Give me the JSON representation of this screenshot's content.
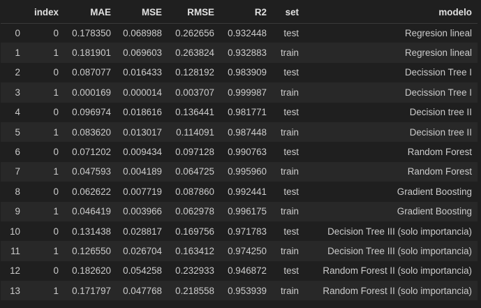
{
  "table": {
    "columns": [
      "",
      "index",
      "MAE",
      "MSE",
      "RMSE",
      "R2",
      "set",
      "modelo"
    ],
    "rows": [
      {
        "idx": "0",
        "index": "0",
        "MAE": "0.178350",
        "MSE": "0.068988",
        "RMSE": "0.262656",
        "R2": "0.932448",
        "set": "test",
        "modelo": "Regresion lineal"
      },
      {
        "idx": "1",
        "index": "1",
        "MAE": "0.181901",
        "MSE": "0.069603",
        "RMSE": "0.263824",
        "R2": "0.932883",
        "set": "train",
        "modelo": "Regresion lineal"
      },
      {
        "idx": "2",
        "index": "0",
        "MAE": "0.087077",
        "MSE": "0.016433",
        "RMSE": "0.128192",
        "R2": "0.983909",
        "set": "test",
        "modelo": "Decission Tree I"
      },
      {
        "idx": "3",
        "index": "1",
        "MAE": "0.000169",
        "MSE": "0.000014",
        "RMSE": "0.003707",
        "R2": "0.999987",
        "set": "train",
        "modelo": "Decission Tree I"
      },
      {
        "idx": "4",
        "index": "0",
        "MAE": "0.096974",
        "MSE": "0.018616",
        "RMSE": "0.136441",
        "R2": "0.981771",
        "set": "test",
        "modelo": "Decision tree II"
      },
      {
        "idx": "5",
        "index": "1",
        "MAE": "0.083620",
        "MSE": "0.013017",
        "RMSE": "0.114091",
        "R2": "0.987448",
        "set": "train",
        "modelo": "Decision tree II"
      },
      {
        "idx": "6",
        "index": "0",
        "MAE": "0.071202",
        "MSE": "0.009434",
        "RMSE": "0.097128",
        "R2": "0.990763",
        "set": "test",
        "modelo": "Random Forest"
      },
      {
        "idx": "7",
        "index": "1",
        "MAE": "0.047593",
        "MSE": "0.004189",
        "RMSE": "0.064725",
        "R2": "0.995960",
        "set": "train",
        "modelo": "Random Forest"
      },
      {
        "idx": "8",
        "index": "0",
        "MAE": "0.062622",
        "MSE": "0.007719",
        "RMSE": "0.087860",
        "R2": "0.992441",
        "set": "test",
        "modelo": "Gradient Boosting"
      },
      {
        "idx": "9",
        "index": "1",
        "MAE": "0.046419",
        "MSE": "0.003966",
        "RMSE": "0.062978",
        "R2": "0.996175",
        "set": "train",
        "modelo": "Gradient Boosting"
      },
      {
        "idx": "10",
        "index": "0",
        "MAE": "0.131438",
        "MSE": "0.028817",
        "RMSE": "0.169756",
        "R2": "0.971783",
        "set": "test",
        "modelo": "Decision Tree III (solo importancia)"
      },
      {
        "idx": "11",
        "index": "1",
        "MAE": "0.126550",
        "MSE": "0.026704",
        "RMSE": "0.163412",
        "R2": "0.974250",
        "set": "train",
        "modelo": "Decision Tree III (solo importancia)"
      },
      {
        "idx": "12",
        "index": "0",
        "MAE": "0.182620",
        "MSE": "0.054258",
        "RMSE": "0.232933",
        "R2": "0.946872",
        "set": "test",
        "modelo": "Random Forest II (solo importancia)"
      },
      {
        "idx": "13",
        "index": "1",
        "MAE": "0.171797",
        "MSE": "0.047768",
        "RMSE": "0.218558",
        "R2": "0.953939",
        "set": "train",
        "modelo": "Random Forest II (solo importancia)"
      }
    ]
  }
}
